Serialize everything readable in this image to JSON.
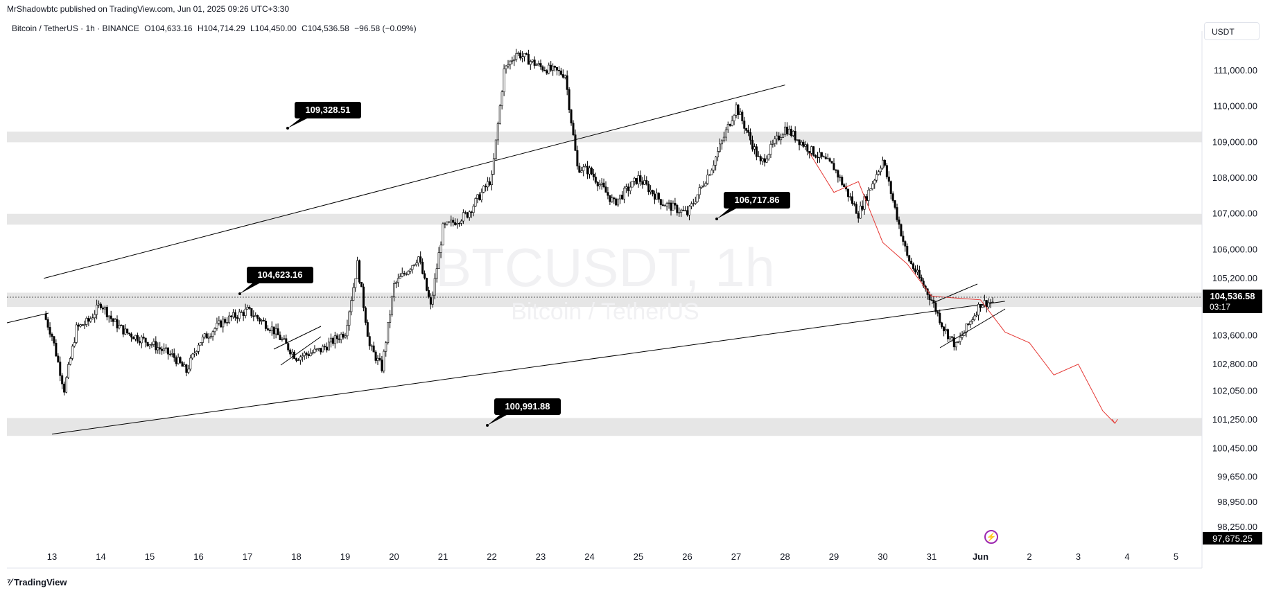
{
  "header": {
    "published": "MrShadowbtc published on TradingView.com, Jun 01, 2025 09:26 UTC+3:30"
  },
  "legend": {
    "symbol": "Bitcoin / TetherUS · 1h · BINANCE",
    "open": "O104,633.16",
    "high": "H104,714.29",
    "low": "L104,450.00",
    "close": "C104,536.58",
    "change": "−96.58 (−0.09%)"
  },
  "currency_button": "USDT",
  "watermark": {
    "symbol": "BTCUSDT, 1h",
    "name": "Bitcoin / TetherUS"
  },
  "price_axis_labels": [
    "111,000.00",
    "110,000.00",
    "109,000.00",
    "108,000.00",
    "107,000.00",
    "106,000.00",
    "105,200.00",
    "103,600.00",
    "102,800.00",
    "102,050.00",
    "101,250.00",
    "100,450.00",
    "99,650.00",
    "98,950.00",
    "98,250.00"
  ],
  "current_price": {
    "value": "104,536.58",
    "countdown": "03:17"
  },
  "bottom_price": "97,675.25",
  "time_axis_labels": [
    "13",
    "14",
    "15",
    "16",
    "17",
    "18",
    "19",
    "20",
    "21",
    "22",
    "23",
    "24",
    "25",
    "26",
    "27",
    "28",
    "29",
    "30",
    "31",
    "Jun",
    "2",
    "3",
    "4",
    "5"
  ],
  "footer": {
    "brand": "TradingView"
  },
  "colors": {
    "zone": "#e6e6e6",
    "candle": "#000000",
    "projection": "#e53935",
    "callout_bg": "#000000"
  },
  "chart_data": {
    "type": "line",
    "title": "BTCUSDT, 1h",
    "x_unit": "date (May 13 – Jun 5, 2025)",
    "ylim": [
      97675,
      111800
    ],
    "series": [
      {
        "name": "",
        "kind": "close_path_approx",
        "x": [
          "May 12 20:00",
          "May 13 00:00",
          "May 13 06:00",
          "May 13 12:00",
          "May 13 18:00",
          "May 14 00:00",
          "May 14 06:00",
          "May 14 12:00",
          "May 15 00:00",
          "May 15 12:00",
          "May 15 18:00",
          "May 16 00:00",
          "May 16 12:00",
          "May 17 00:00",
          "May 17 12:00",
          "May 18 00:00",
          "May 18 12:00",
          "May 19 00:00",
          "May 19 06:00",
          "May 19 12:00",
          "May 19 18:00",
          "May 20 00:00",
          "May 20 12:00",
          "May 20 18:00",
          "May 21 00:00",
          "May 21 12:00",
          "May 22 00:00",
          "May 22 06:00",
          "May 22 12:00",
          "May 23 00:00",
          "May 23 12:00",
          "May 23 18:00",
          "May 24 00:00",
          "May 24 12:00",
          "May 25 00:00",
          "May 25 12:00",
          "May 26 00:00",
          "May 26 12:00",
          "May 27 00:00",
          "May 27 12:00",
          "May 28 00:00",
          "May 28 12:00",
          "May 29 00:00",
          "May 29 12:00",
          "May 30 00:00",
          "May 30 12:00",
          "May 31 00:00",
          "May 31 06:00",
          "May 31 12:00",
          "Jun 1 00:00",
          "Jun 1 06:00"
        ],
        "y": [
          104200,
          103600,
          102100,
          103800,
          104000,
          104500,
          104000,
          103700,
          103400,
          103000,
          102600,
          103400,
          104000,
          104300,
          103800,
          103000,
          103200,
          103700,
          105600,
          103300,
          102700,
          105000,
          105800,
          104400,
          106600,
          107000,
          108000,
          111000,
          111500,
          111100,
          110900,
          108300,
          108200,
          107300,
          108000,
          107300,
          107000,
          108300,
          110000,
          108400,
          109400,
          108800,
          108300,
          107000,
          108500,
          105800,
          104600,
          103800,
          103300,
          104500,
          104537
        ]
      },
      {
        "name": "",
        "kind": "projection",
        "x": [
          "May 28 12:00",
          "May 29 00:00",
          "May 29 12:00",
          "May 30 00:00",
          "May 30 12:00",
          "May 31 00:00",
          "Jun 1 00:00",
          "Jun 1 12:00",
          "Jun 2 00:00",
          "Jun 2 12:00",
          "Jun 3 00:00",
          "Jun 3 12:00",
          "Jun 3 18:00"
        ],
        "y": [
          108700,
          107600,
          107900,
          106200,
          105600,
          104700,
          104600,
          103700,
          103400,
          102500,
          102800,
          101500,
          101150
        ]
      }
    ],
    "zones": [
      {
        "label": "109,328.51",
        "from": 109000,
        "to": 109300
      },
      {
        "label": "106,717.86",
        "from": 106700,
        "to": 107000
      },
      {
        "label": "104,623.16",
        "from": 104400,
        "to": 104800
      },
      {
        "label": "100,991.88",
        "from": 100800,
        "to": 101300
      }
    ],
    "trendlines": [
      {
        "from": {
          "x": "May 12 20:00",
          "y": 105200
        },
        "to": {
          "x": "May 28 00:00",
          "y": 110600
        }
      },
      {
        "from": {
          "x": "May 13 00:00",
          "y": 100850
        },
        "to": {
          "x": "Jun 1 12:00",
          "y": 104560
        }
      }
    ],
    "callouts": [
      "109,328.51",
      "104,623.16",
      "106,717.86",
      "100,991.88"
    ],
    "current_price": 104536.58,
    "grid": false
  }
}
